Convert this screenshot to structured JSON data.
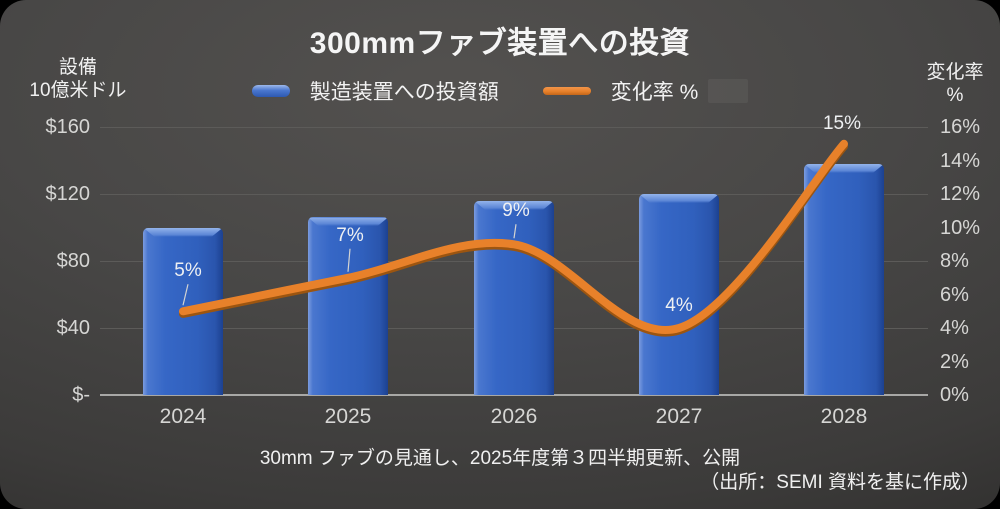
{
  "title": "300mmファブ装置への投資",
  "axes": {
    "left": {
      "title": [
        "設備",
        "10億米ドル"
      ],
      "ticks": [
        "$160",
        "$120",
        "$80",
        "$40",
        "$-"
      ]
    },
    "right": {
      "title": [
        "変化率",
        "%"
      ],
      "ticks": [
        "16%",
        "14%",
        "12%",
        "10%",
        "8%",
        "6%",
        "4%",
        "2%",
        "0%"
      ]
    }
  },
  "legend": {
    "bar_label": "製造装置への投資額",
    "line_label": "変化率 %"
  },
  "footer": {
    "caption": "30mm ファブの見通し、2025年度第３四半期更新、公開",
    "source": "（出所：SEMI 資料を基に作成）"
  },
  "colors": {
    "bar_blue": "#3060bd",
    "bar_bevel_light": "#93b3ea",
    "bar_edge_dark": "#1c4190",
    "line_orange": "#e8812a",
    "line_shadow": "#9c5510",
    "background": "#484746",
    "gridline": "#5c5b59",
    "axis_line": "#a8a8a6",
    "tick_text": "#d6d6d4"
  },
  "chart_data": {
    "type": "bar",
    "subtype": "combo bar+smooth-line, dual axis",
    "title": "300mmファブ装置への投資",
    "categories": [
      "2024",
      "2025",
      "2026",
      "2027",
      "2028"
    ],
    "series": [
      {
        "name": "製造装置への投資額",
        "type": "bar",
        "axis": "left",
        "unit": "10億米ドル",
        "values": [
          100,
          106,
          116,
          120,
          138
        ]
      },
      {
        "name": "変化率 %",
        "type": "line",
        "axis": "right",
        "unit": "%",
        "values": [
          5,
          7,
          9,
          4,
          15
        ],
        "point_labels": [
          "5%",
          "7%",
          "9%",
          "4%",
          "15%"
        ],
        "smooth": true
      }
    ],
    "left_axis_range": [
      0,
      160
    ],
    "right_axis_range": [
      0,
      16
    ],
    "gridlines": "horizontal major every $40 (= 4%)",
    "legend_position": "top-center"
  }
}
